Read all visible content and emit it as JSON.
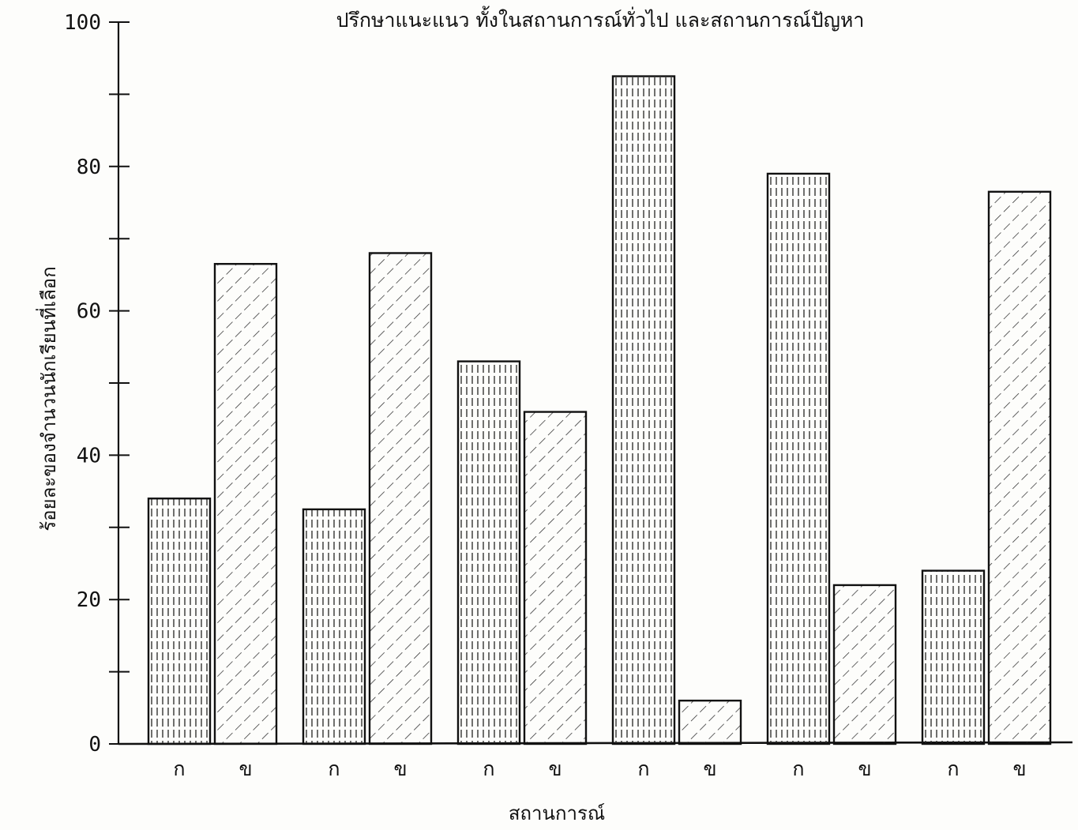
{
  "chart_data": {
    "type": "bar",
    "title": "ปรึกษาแนะแนว ทั้งในสถานการณ์ทั่วไป และสถานการณ์ปัญหา",
    "xlabel": "สถานการณ์",
    "ylabel": "ร้อยละของจำนวนนักเรียนที่เลือก",
    "ylim": [
      0,
      100
    ],
    "yticks": [
      "0",
      "20",
      "40",
      "60",
      "80",
      "100"
    ],
    "groups": 6,
    "bars": [
      {
        "label": "ก",
        "value": 34,
        "pattern": "vertical"
      },
      {
        "label": "ข",
        "value": 66.5,
        "pattern": "diagonal"
      },
      {
        "label": "ก",
        "value": 32.5,
        "pattern": "vertical"
      },
      {
        "label": "ข",
        "value": 68,
        "pattern": "diagonal"
      },
      {
        "label": "ก",
        "value": 53,
        "pattern": "vertical"
      },
      {
        "label": "ข",
        "value": 46,
        "pattern": "diagonal"
      },
      {
        "label": "ก",
        "value": 92.5,
        "pattern": "vertical"
      },
      {
        "label": "ข",
        "value": 6,
        "pattern": "diagonal"
      },
      {
        "label": "ก",
        "value": 79,
        "pattern": "vertical"
      },
      {
        "label": "ข",
        "value": 22,
        "pattern": "diagonal"
      },
      {
        "label": "ก",
        "value": 24,
        "pattern": "vertical"
      },
      {
        "label": "ข",
        "value": 76.5,
        "pattern": "diagonal"
      }
    ],
    "grid": false,
    "legend": "none"
  }
}
